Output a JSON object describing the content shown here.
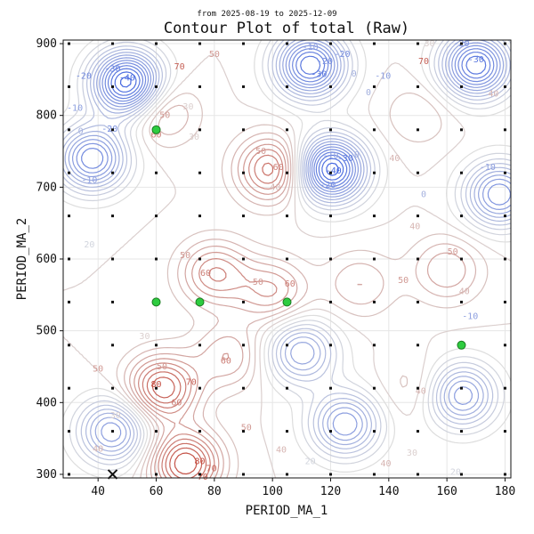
{
  "chart_data": {
    "type": "contour",
    "title": "Contour Plot of total (Raw)",
    "subtitle": "from 2025-08-19 to 2025-12-09",
    "xlabel": "PERIOD_MA_1",
    "ylabel": "PERIOD_MA_2",
    "xlim": [
      28,
      182
    ],
    "ylim": [
      295,
      905
    ],
    "xticks": [
      40,
      60,
      80,
      100,
      120,
      140,
      160,
      180
    ],
    "yticks": [
      300,
      400,
      500,
      600,
      700,
      800,
      900
    ],
    "grid": true,
    "colormap": {
      "low": "#3a5fe0",
      "mid": "#dddddd",
      "high": "#c0392b"
    },
    "sample_grid": {
      "x": [
        30,
        45,
        60,
        75,
        90,
        105,
        120,
        135,
        150,
        165,
        180
      ],
      "y": [
        300,
        360,
        420,
        480,
        540,
        600,
        660,
        720,
        780,
        840,
        900
      ]
    },
    "highlight_points": [
      {
        "x": 60,
        "y": 780
      },
      {
        "x": 60,
        "y": 540
      },
      {
        "x": 75,
        "y": 540
      },
      {
        "x": 105,
        "y": 540
      },
      {
        "x": 165,
        "y": 480
      }
    ],
    "best_point": {
      "x": 45,
      "y": 300
    },
    "field_features": [
      {
        "x": 50,
        "y": 845,
        "value": -45
      },
      {
        "x": 38,
        "y": 740,
        "value": -25
      },
      {
        "x": 120,
        "y": 725,
        "value": -45
      },
      {
        "x": 113,
        "y": 870,
        "value": -35
      },
      {
        "x": 170,
        "y": 870,
        "value": -35
      },
      {
        "x": 178,
        "y": 690,
        "value": -20
      },
      {
        "x": 110,
        "y": 470,
        "value": -10
      },
      {
        "x": 125,
        "y": 370,
        "value": -15
      },
      {
        "x": 165,
        "y": 410,
        "value": -15
      },
      {
        "x": 45,
        "y": 360,
        "value": -15
      },
      {
        "x": 100,
        "y": 725,
        "value": 70
      },
      {
        "x": 62,
        "y": 420,
        "value": 75
      },
      {
        "x": 70,
        "y": 315,
        "value": 80
      },
      {
        "x": 80,
        "y": 580,
        "value": 60
      },
      {
        "x": 100,
        "y": 555,
        "value": 55
      },
      {
        "x": 160,
        "y": 585,
        "value": 50
      },
      {
        "x": 130,
        "y": 565,
        "value": 45
      },
      {
        "x": 62,
        "y": 805,
        "value": 50
      },
      {
        "x": 150,
        "y": 800,
        "value": 40
      },
      {
        "x": 150,
        "y": 420,
        "value": 40
      },
      {
        "x": 85,
        "y": 465,
        "value": 50
      }
    ],
    "contour_labels": [
      {
        "x": 50,
        "y": 852,
        "text": "-40"
      },
      {
        "x": 45,
        "y": 865,
        "text": "-30"
      },
      {
        "x": 35,
        "y": 855,
        "text": "-20"
      },
      {
        "x": 32,
        "y": 810,
        "text": "-10"
      },
      {
        "x": 34,
        "y": 778,
        "text": "0"
      },
      {
        "x": 44,
        "y": 781,
        "text": "-20"
      },
      {
        "x": 37,
        "y": 710,
        "text": "-10"
      },
      {
        "x": 37,
        "y": 620,
        "text": "20"
      },
      {
        "x": 63,
        "y": 800,
        "text": "50"
      },
      {
        "x": 60,
        "y": 773,
        "text": "60"
      },
      {
        "x": 71,
        "y": 812,
        "text": "30"
      },
      {
        "x": 68,
        "y": 868,
        "text": "70"
      },
      {
        "x": 80,
        "y": 885,
        "text": "50"
      },
      {
        "x": 73,
        "y": 770,
        "text": "30"
      },
      {
        "x": 96,
        "y": 750,
        "text": "50"
      },
      {
        "x": 102,
        "y": 728,
        "text": "60"
      },
      {
        "x": 101,
        "y": 700,
        "text": "40"
      },
      {
        "x": 113,
        "y": 895,
        "text": "-10"
      },
      {
        "x": 118,
        "y": 875,
        "text": "-20"
      },
      {
        "x": 116,
        "y": 857,
        "text": "-30"
      },
      {
        "x": 124,
        "y": 885,
        "text": "-20"
      },
      {
        "x": 128,
        "y": 858,
        "text": "0"
      },
      {
        "x": 138,
        "y": 855,
        "text": "-10"
      },
      {
        "x": 133,
        "y": 832,
        "text": "0"
      },
      {
        "x": 152,
        "y": 875,
        "text": "70"
      },
      {
        "x": 154,
        "y": 900,
        "text": "30"
      },
      {
        "x": 165,
        "y": 900,
        "text": "-20"
      },
      {
        "x": 170,
        "y": 878,
        "text": "-30"
      },
      {
        "x": 176,
        "y": 830,
        "text": "40"
      },
      {
        "x": 125,
        "y": 740,
        "text": "-30"
      },
      {
        "x": 119,
        "y": 703,
        "text": "-20"
      },
      {
        "x": 120,
        "y": 744,
        "text": "-10"
      },
      {
        "x": 121,
        "y": 723,
        "text": "-40"
      },
      {
        "x": 129,
        "y": 745,
        "text": "0"
      },
      {
        "x": 142,
        "y": 740,
        "text": "40"
      },
      {
        "x": 152,
        "y": 690,
        "text": "0"
      },
      {
        "x": 149,
        "y": 645,
        "text": "40"
      },
      {
        "x": 162,
        "y": 610,
        "text": "50"
      },
      {
        "x": 174,
        "y": 728,
        "text": "-10"
      },
      {
        "x": 70,
        "y": 605,
        "text": "50"
      },
      {
        "x": 77,
        "y": 580,
        "text": "60"
      },
      {
        "x": 95,
        "y": 568,
        "text": "50"
      },
      {
        "x": 106,
        "y": 565,
        "text": "60"
      },
      {
        "x": 145,
        "y": 570,
        "text": "50"
      },
      {
        "x": 166,
        "y": 555,
        "text": "40"
      },
      {
        "x": 168,
        "y": 520,
        "text": "-10"
      },
      {
        "x": 56,
        "y": 492,
        "text": "30"
      },
      {
        "x": 40,
        "y": 447,
        "text": "50"
      },
      {
        "x": 62,
        "y": 450,
        "text": "50"
      },
      {
        "x": 72,
        "y": 428,
        "text": "70"
      },
      {
        "x": 60,
        "y": 425,
        "text": "80"
      },
      {
        "x": 67,
        "y": 400,
        "text": "60"
      },
      {
        "x": 84,
        "y": 458,
        "text": "60"
      },
      {
        "x": 46,
        "y": 382,
        "text": "30"
      },
      {
        "x": 40,
        "y": 335,
        "text": "40"
      },
      {
        "x": 91,
        "y": 365,
        "text": "50"
      },
      {
        "x": 79,
        "y": 308,
        "text": "70"
      },
      {
        "x": 75,
        "y": 318,
        "text": "80"
      },
      {
        "x": 76,
        "y": 296,
        "text": "70"
      },
      {
        "x": 103,
        "y": 334,
        "text": "40"
      },
      {
        "x": 113,
        "y": 318,
        "text": "20"
      },
      {
        "x": 139,
        "y": 315,
        "text": "40"
      },
      {
        "x": 148,
        "y": 330,
        "text": "30"
      },
      {
        "x": 151,
        "y": 416,
        "text": "40"
      },
      {
        "x": 163,
        "y": 303,
        "text": "20"
      }
    ]
  }
}
